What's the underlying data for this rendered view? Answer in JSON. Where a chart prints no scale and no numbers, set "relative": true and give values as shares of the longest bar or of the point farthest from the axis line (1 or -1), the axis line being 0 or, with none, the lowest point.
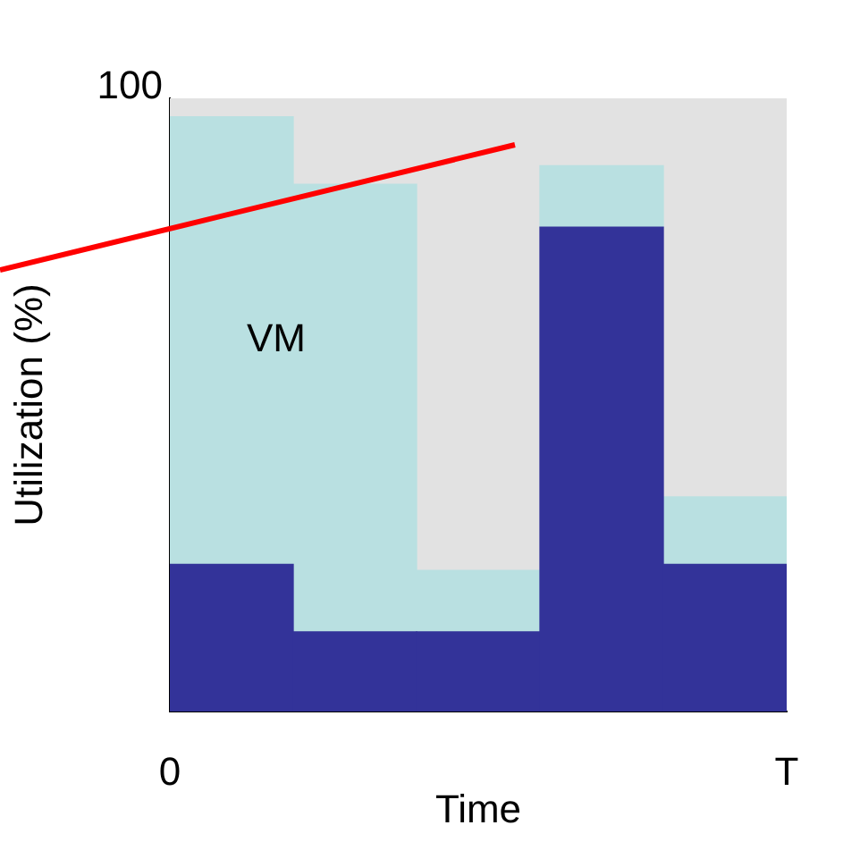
{
  "chart_data": {
    "type": "bar",
    "relative": true,
    "stacked": true,
    "xlabel": "Time",
    "ylabel": "Utilization (%)",
    "categories": [
      null,
      null,
      null,
      null,
      null
    ],
    "series": [
      {
        "color": "#333399",
        "values": [
          0.24,
          0.13,
          0.13,
          0.79,
          0.24
        ]
      },
      {
        "name": "VM",
        "color": "#b9e0e1",
        "values": [
          0.73,
          0.73,
          0.1,
          0.1,
          0.11
        ]
      },
      {
        "color": "#e2e2e2",
        "values": [
          0.03,
          0.14,
          0.77,
          0.11,
          0.65
        ]
      }
    ],
    "annotations": [
      "100",
      "0",
      "T"
    ]
  }
}
